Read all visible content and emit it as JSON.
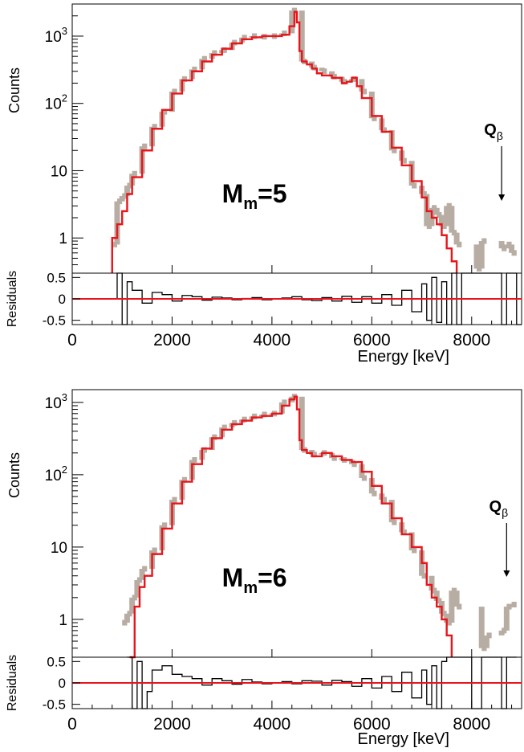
{
  "chart_data": [
    {
      "type": "histogram",
      "annotation": "M",
      "annotation_sub": "m",
      "annotation_val": "=5",
      "qbeta_label": "Q",
      "qbeta_sub": "β",
      "qbeta_x": 8600,
      "ylabel": "Counts",
      "yscale": "log",
      "ylim": [
        0.3,
        3000
      ],
      "xlim": [
        0,
        9000
      ],
      "y_ticks": [
        {
          "value": 1000,
          "label": "10",
          "sup": "3"
        },
        {
          "value": 100,
          "label": "10",
          "sup": "2"
        },
        {
          "value": 10,
          "label": "10",
          "sup": ""
        },
        {
          "value": 1,
          "label": "1",
          "sup": ""
        }
      ],
      "series": [
        {
          "role": "fit",
          "color": "#e8151b",
          "x": [
            800,
            900,
            1000,
            1100,
            1200,
            1400,
            1600,
            1800,
            2000,
            2200,
            2400,
            2600,
            2800,
            3000,
            3200,
            3400,
            3600,
            3800,
            4000,
            4200,
            4350,
            4450,
            4500,
            4550,
            4600,
            4700,
            4800,
            4900,
            5000,
            5200,
            5400,
            5500,
            5600,
            5700,
            5800,
            6000,
            6200,
            6400,
            6600,
            6800,
            7000,
            7100,
            7200,
            7300,
            7400,
            7500,
            7600,
            7700
          ],
          "y": [
            1,
            1.6,
            2.5,
            4.5,
            8,
            20,
            42,
            80,
            140,
            220,
            300,
            420,
            530,
            650,
            780,
            900,
            960,
            1000,
            1000,
            1050,
            1400,
            2300,
            1600,
            600,
            420,
            380,
            330,
            280,
            260,
            240,
            200,
            210,
            240,
            180,
            120,
            65,
            38,
            22,
            12,
            7,
            4,
            2.5,
            2,
            1.6,
            1.1,
            0.7,
            0.45,
            0.3
          ]
        },
        {
          "role": "data",
          "color": "#b8ada3",
          "x": [
            850,
            950,
            1050,
            1150,
            1250,
            1450,
            1650,
            1850,
            2050,
            2250,
            2450,
            2650,
            2850,
            3050,
            3250,
            3450,
            3650,
            3850,
            4050,
            4250,
            4450,
            4650,
            4850,
            5050,
            5250,
            5450,
            5650,
            5850,
            6050,
            6250,
            6450,
            6650,
            6850,
            7050,
            7150,
            7250,
            7350,
            7450,
            7550,
            7650,
            7750,
            8150,
            8250,
            8650,
            8750,
            8850
          ],
          "y": [
            0.8,
            3.5,
            4.2,
            6,
            9,
            23,
            45,
            75,
            150,
            230,
            320,
            460,
            560,
            620,
            800,
            950,
            1000,
            980,
            1000,
            1100,
            2400,
            420,
            340,
            300,
            250,
            210,
            230,
            150,
            60,
            40,
            20,
            14,
            6,
            4.5,
            1.5,
            2.8,
            2.2,
            1.5,
            3,
            1.2,
            0.8,
            0.35,
            0.9,
            0.7,
            0.8,
            0.6
          ]
        }
      ],
      "residuals": {
        "ylabel": "Residuals",
        "ylim": [
          -0.6,
          0.6
        ],
        "y_ticks": [
          "0.5",
          "0",
          "-0.5"
        ],
        "x": [
          800,
          900,
          1000,
          1100,
          1200,
          1400,
          1600,
          1800,
          2000,
          2200,
          2400,
          2600,
          2800,
          3000,
          3200,
          3400,
          3600,
          3800,
          4000,
          4200,
          4400,
          4600,
          4800,
          5000,
          5200,
          5400,
          5600,
          5800,
          6000,
          6200,
          6400,
          6600,
          6800,
          7000,
          7100,
          7200,
          7300,
          7400,
          7500,
          7600,
          7700,
          7800,
          8200,
          8600,
          8700,
          8800,
          8900
        ],
        "y": [
          0,
          0.6,
          -0.6,
          0.4,
          0.2,
          -0.1,
          0.15,
          0.1,
          -0.05,
          0.08,
          0.05,
          -0.03,
          0.04,
          0.02,
          -0.02,
          0.01,
          0.03,
          -0.02,
          0.0,
          0.02,
          0.05,
          -0.02,
          -0.04,
          0.03,
          -0.05,
          0.06,
          -0.08,
          0.05,
          -0.1,
          0.1,
          -0.15,
          0.2,
          -0.3,
          0.35,
          -0.5,
          0.5,
          -0.55,
          0.4,
          -0.6,
          0.6,
          -0.6,
          0.6,
          0.6,
          -0.6,
          0.6,
          0.6,
          -0.6
        ]
      },
      "x_ticks": [
        "0",
        "2000",
        "4000",
        "6000",
        "8000"
      ],
      "xlabel": "Energy [keV]"
    },
    {
      "type": "histogram",
      "annotation": "M",
      "annotation_sub": "m",
      "annotation_val": "=6",
      "qbeta_label": "Q",
      "qbeta_sub": "β",
      "qbeta_x": 8700,
      "ylabel": "Counts",
      "yscale": "log",
      "ylim": [
        0.3,
        1500
      ],
      "xlim": [
        0,
        9000
      ],
      "y_ticks": [
        {
          "value": 1000,
          "label": "10",
          "sup": "3"
        },
        {
          "value": 100,
          "label": "10",
          "sup": "2"
        },
        {
          "value": 10,
          "label": "10",
          "sup": ""
        },
        {
          "value": 1,
          "label": "1",
          "sup": ""
        }
      ],
      "series": [
        {
          "role": "fit",
          "color": "#e8151b",
          "x": [
            1150,
            1250,
            1350,
            1450,
            1600,
            1800,
            2000,
            2200,
            2400,
            2600,
            2800,
            3000,
            3200,
            3400,
            3600,
            3800,
            4000,
            4200,
            4350,
            4450,
            4500,
            4550,
            4600,
            4700,
            4800,
            5000,
            5200,
            5400,
            5600,
            5800,
            6000,
            6200,
            6400,
            6600,
            6800,
            7000,
            7100,
            7200,
            7300,
            7400,
            7500,
            7600
          ],
          "y": [
            0.3,
            1.5,
            2.8,
            4,
            8,
            18,
            40,
            80,
            140,
            230,
            320,
            420,
            500,
            560,
            620,
            650,
            700,
            900,
            1100,
            1200,
            800,
            300,
            220,
            200,
            180,
            200,
            180,
            160,
            150,
            110,
            70,
            40,
            25,
            15,
            10,
            6,
            3,
            2,
            1.5,
            1,
            0.6,
            0.3
          ]
        },
        {
          "role": "data",
          "color": "#b8ada3",
          "x": [
            1050,
            1150,
            1250,
            1350,
            1450,
            1650,
            1850,
            2050,
            2250,
            2450,
            2650,
            2850,
            3050,
            3250,
            3450,
            3650,
            3850,
            4050,
            4250,
            4450,
            4650,
            4850,
            5050,
            5250,
            5450,
            5650,
            5850,
            6050,
            6250,
            6450,
            6650,
            6850,
            7050,
            7250,
            7350,
            7450,
            7550,
            7650,
            7750,
            8250,
            8350,
            8650,
            8750,
            8850
          ],
          "y": [
            0.9,
            1.2,
            2,
            3.5,
            5,
            9,
            20,
            45,
            85,
            160,
            220,
            330,
            450,
            520,
            580,
            640,
            680,
            700,
            1000,
            1200,
            220,
            190,
            200,
            170,
            160,
            140,
            90,
            55,
            45,
            22,
            16,
            9,
            4,
            2.5,
            1.8,
            1.2,
            0.9,
            2.5,
            1.5,
            0.4,
            0.6,
            0.7,
            1.5,
            1.6
          ]
        }
      ],
      "residuals": {
        "ylabel": "Residuals",
        "ylim": [
          -0.6,
          0.6
        ],
        "y_ticks": [
          "0.5",
          "0",
          "-0.5"
        ],
        "x": [
          1100,
          1200,
          1300,
          1400,
          1500,
          1600,
          1800,
          2000,
          2200,
          2400,
          2600,
          2800,
          3000,
          3200,
          3400,
          3600,
          3800,
          4000,
          4200,
          4400,
          4600,
          4800,
          5000,
          5200,
          5400,
          5600,
          5800,
          6000,
          6200,
          6400,
          6600,
          6800,
          7000,
          7100,
          7200,
          7300,
          7400,
          7500,
          7600,
          7800,
          8000,
          8200,
          8400,
          8600,
          8700,
          8800
        ],
        "y": [
          0.6,
          -0.6,
          0.5,
          -0.6,
          -0.2,
          0.3,
          0.4,
          0.2,
          0.15,
          0.1,
          -0.05,
          0.1,
          0.05,
          -0.03,
          0.08,
          0.02,
          -0.02,
          0.0,
          0.03,
          -0.02,
          0.05,
          0.04,
          -0.05,
          0.06,
          0.03,
          -0.08,
          0.1,
          -0.12,
          0.15,
          -0.2,
          0.25,
          -0.35,
          0.3,
          -0.5,
          0.4,
          -0.6,
          0.5,
          0.6,
          0.6,
          0.6,
          -0.6,
          0.6,
          0.6,
          -0.6,
          0.6,
          0.6
        ]
      },
      "x_ticks": [
        "0",
        "2000",
        "4000",
        "6000",
        "8000"
      ],
      "xlabel": "Energy [keV]"
    }
  ]
}
